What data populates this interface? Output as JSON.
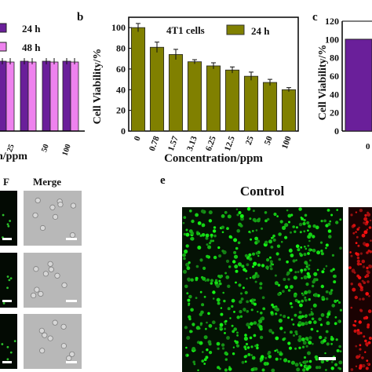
{
  "panel_labels": {
    "b": "b",
    "c": "c",
    "e": "e"
  },
  "panel_a": {
    "legend": [
      {
        "label": "24 h",
        "color": "#6a1f9a"
      },
      {
        "label": "48 h",
        "color": "#ee82ee"
      }
    ],
    "tick_labels": [
      "25",
      "50",
      "100"
    ],
    "xlabel_fragment": "n/ppm"
  },
  "chart_data": [
    {
      "type": "bar",
      "panel": "b",
      "title": "4T1 cells",
      "xlabel": "Concentration/ppm",
      "ylabel": "Cell Viability/%",
      "categories": [
        "0",
        "0.78",
        "1.57",
        "3.13",
        "6.25",
        "12.5",
        "25",
        "50",
        "100"
      ],
      "series": [
        {
          "name": "24 h",
          "color": "#808000",
          "values": [
            100,
            81,
            74,
            67,
            63,
            59,
            53,
            47,
            40
          ],
          "errors": [
            4,
            5,
            5,
            2,
            3,
            3,
            4,
            3,
            2
          ]
        }
      ],
      "ylim": [
        0,
        110
      ],
      "yticks": [
        0,
        20,
        40,
        60,
        80,
        100
      ],
      "legend_position": "top-right"
    },
    {
      "type": "bar",
      "panel": "c",
      "xlabel": "",
      "ylabel": "Cell Viability/%",
      "yticks": [
        0,
        20,
        40,
        60,
        80,
        100,
        120
      ],
      "ylim": [
        0,
        120
      ],
      "series": [
        {
          "color": "#6a1f9a",
          "values": [
            100
          ]
        }
      ],
      "first_tick_fragment": "0"
    }
  ],
  "panel_d": {
    "headers": {
      "f": "F",
      "merge": "Merge"
    }
  },
  "panel_e": {
    "title": "Control"
  }
}
